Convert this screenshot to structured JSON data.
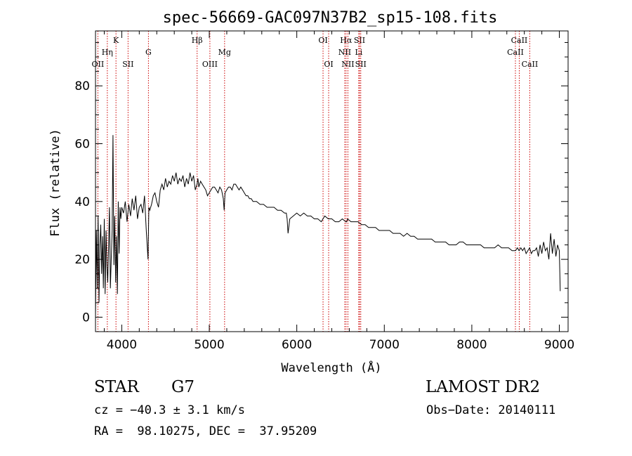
{
  "chart_data": {
    "type": "line",
    "title": "spec-56669-GAC097N37B2_sp15-108.fits",
    "xlabel": "Wavelength (Å)",
    "ylabel": "Flux (relative)",
    "xlim": [
      3700,
      9100
    ],
    "ylim": [
      -5,
      99
    ],
    "xticks": [
      4000,
      5000,
      6000,
      7000,
      8000,
      9000
    ],
    "yticks": [
      0,
      20,
      40,
      60,
      80
    ],
    "x_minor_step": 200,
    "y_minor_step": 5,
    "line_color": "#000000",
    "marker_color": "#cc0000",
    "series": [
      {
        "x": [
          3700,
          3710,
          3720,
          3730,
          3740,
          3750,
          3760,
          3770,
          3780,
          3790,
          3800,
          3810,
          3820,
          3830,
          3840,
          3850,
          3860,
          3870,
          3880,
          3890,
          3900,
          3910,
          3920,
          3930,
          3940,
          3950,
          3960,
          3970,
          3980,
          3990,
          4000,
          4020,
          4040,
          4060,
          4080,
          4100,
          4120,
          4140,
          4160,
          4180,
          4200,
          4220,
          4240,
          4260,
          4280,
          4300,
          4310,
          4320,
          4340,
          4360,
          4380,
          4400,
          4420,
          4440,
          4460,
          4480,
          4500,
          4520,
          4540,
          4560,
          4580,
          4600,
          4620,
          4640,
          4660,
          4680,
          4700,
          4720,
          4740,
          4760,
          4780,
          4800,
          4820,
          4840,
          4860,
          4870,
          4880,
          4900,
          4920,
          4940,
          4960,
          4980,
          5000,
          5020,
          5040,
          5060,
          5080,
          5100,
          5120,
          5140,
          5160,
          5170,
          5180,
          5200,
          5220,
          5240,
          5260,
          5280,
          5300,
          5320,
          5340,
          5360,
          5380,
          5400,
          5420,
          5440,
          5460,
          5480,
          5500,
          5540,
          5580,
          5620,
          5660,
          5700,
          5740,
          5780,
          5820,
          5860,
          5880,
          5890,
          5900,
          5920,
          5960,
          6000,
          6040,
          6080,
          6120,
          6160,
          6200,
          6240,
          6280,
          6320,
          6360,
          6400,
          6440,
          6480,
          6520,
          6560,
          6570,
          6580,
          6620,
          6660,
          6700,
          6740,
          6780,
          6820,
          6860,
          6900,
          6940,
          6980,
          7020,
          7060,
          7100,
          7140,
          7180,
          7220,
          7260,
          7300,
          7340,
          7380,
          7420,
          7460,
          7500,
          7540,
          7580,
          7620,
          7660,
          7700,
          7740,
          7780,
          7820,
          7860,
          7900,
          7940,
          7980,
          8020,
          8060,
          8100,
          8140,
          8180,
          8220,
          8260,
          8300,
          8340,
          8380,
          8420,
          8460,
          8500,
          8520,
          8540,
          8560,
          8580,
          8600,
          8620,
          8640,
          8660,
          8680,
          8700,
          8720,
          8740,
          8760,
          8780,
          8800,
          8820,
          8840,
          8860,
          8880,
          8900,
          8920,
          8940,
          8960,
          8980,
          9000,
          9010
        ],
        "y": [
          0,
          30,
          10,
          35,
          5,
          25,
          32,
          15,
          28,
          10,
          34,
          8,
          30,
          18,
          12,
          25,
          38,
          10,
          20,
          30,
          63,
          18,
          35,
          12,
          28,
          8,
          40,
          22,
          38,
          34,
          38,
          36,
          40,
          33,
          39,
          35,
          41,
          37,
          42,
          34,
          38,
          39,
          36,
          42,
          30,
          20,
          38,
          37,
          39,
          42,
          43,
          40,
          38,
          44,
          46,
          44,
          48,
          45,
          47,
          46,
          49,
          47,
          50,
          46,
          48,
          47,
          49,
          45,
          48,
          46,
          50,
          47,
          49,
          44,
          46,
          48,
          45,
          47,
          46,
          45,
          44,
          42,
          43,
          44,
          45,
          45,
          44,
          43,
          45,
          44,
          41,
          37,
          43,
          44,
          45,
          45,
          44,
          46,
          46,
          45,
          44,
          45,
          44,
          43,
          42,
          42,
          41,
          41,
          40,
          40,
          39,
          39,
          38,
          38,
          38,
          37,
          37,
          36,
          36,
          34,
          29,
          34,
          35,
          36,
          35,
          36,
          35,
          35,
          34,
          34,
          33,
          35,
          34,
          34,
          33,
          33,
          34,
          33,
          33,
          34,
          33,
          33,
          33,
          32,
          32,
          31,
          31,
          31,
          30,
          30,
          30,
          30,
          29,
          29,
          29,
          28,
          29,
          28,
          28,
          27,
          27,
          27,
          27,
          27,
          26,
          26,
          26,
          26,
          25,
          25,
          25,
          26,
          26,
          25,
          25,
          25,
          25,
          25,
          24,
          24,
          24,
          24,
          25,
          24,
          24,
          24,
          23,
          23,
          24,
          23,
          24,
          23,
          24,
          22,
          23,
          24,
          22,
          23,
          23,
          24,
          21,
          25,
          22,
          26,
          23,
          24,
          20,
          29,
          22,
          27,
          21,
          25,
          23,
          9
        ]
      }
    ],
    "lines": [
      {
        "label": "OII",
        "x": 3727,
        "row": 3
      },
      {
        "label": "Hη",
        "x": 3835,
        "row": 2
      },
      {
        "label": "K",
        "x": 3934,
        "row": 1
      },
      {
        "label": "SII",
        "x": 4072,
        "row": 3
      },
      {
        "label": "G",
        "x": 4305,
        "row": 2
      },
      {
        "label": "Hβ",
        "x": 4861,
        "row": 1
      },
      {
        "label": "OIII",
        "x": 5007,
        "row": 3
      },
      {
        "label": "Mg",
        "x": 5175,
        "row": 2
      },
      {
        "label": "OI",
        "x": 6300,
        "row": 1
      },
      {
        "label": "OI",
        "x": 6364,
        "row": 3
      },
      {
        "label": "Hα",
        "x": 6563,
        "row": 1
      },
      {
        "label": "NII",
        "x": 6548,
        "row": 2
      },
      {
        "label": "NII",
        "x": 6584,
        "row": 3
      },
      {
        "label": "SII",
        "x": 6717,
        "row": 1
      },
      {
        "label": "Li",
        "x": 6708,
        "row": 2
      },
      {
        "label": "SII",
        "x": 6731,
        "row": 3
      },
      {
        "label": "CaII",
        "x": 8542,
        "row": 1
      },
      {
        "label": "CaII",
        "x": 8498,
        "row": 2
      },
      {
        "label": "CaII",
        "x": 8662,
        "row": 3
      }
    ]
  },
  "info": {
    "class_label": "STAR",
    "subclass_label": "G7",
    "survey": "LAMOST DR2",
    "cz": "cz = −40.3 ± 3.1 km/s",
    "obs_date": "Obs−Date: 20140111",
    "coords": "RA =  98.10275, DEC =  37.95209"
  }
}
